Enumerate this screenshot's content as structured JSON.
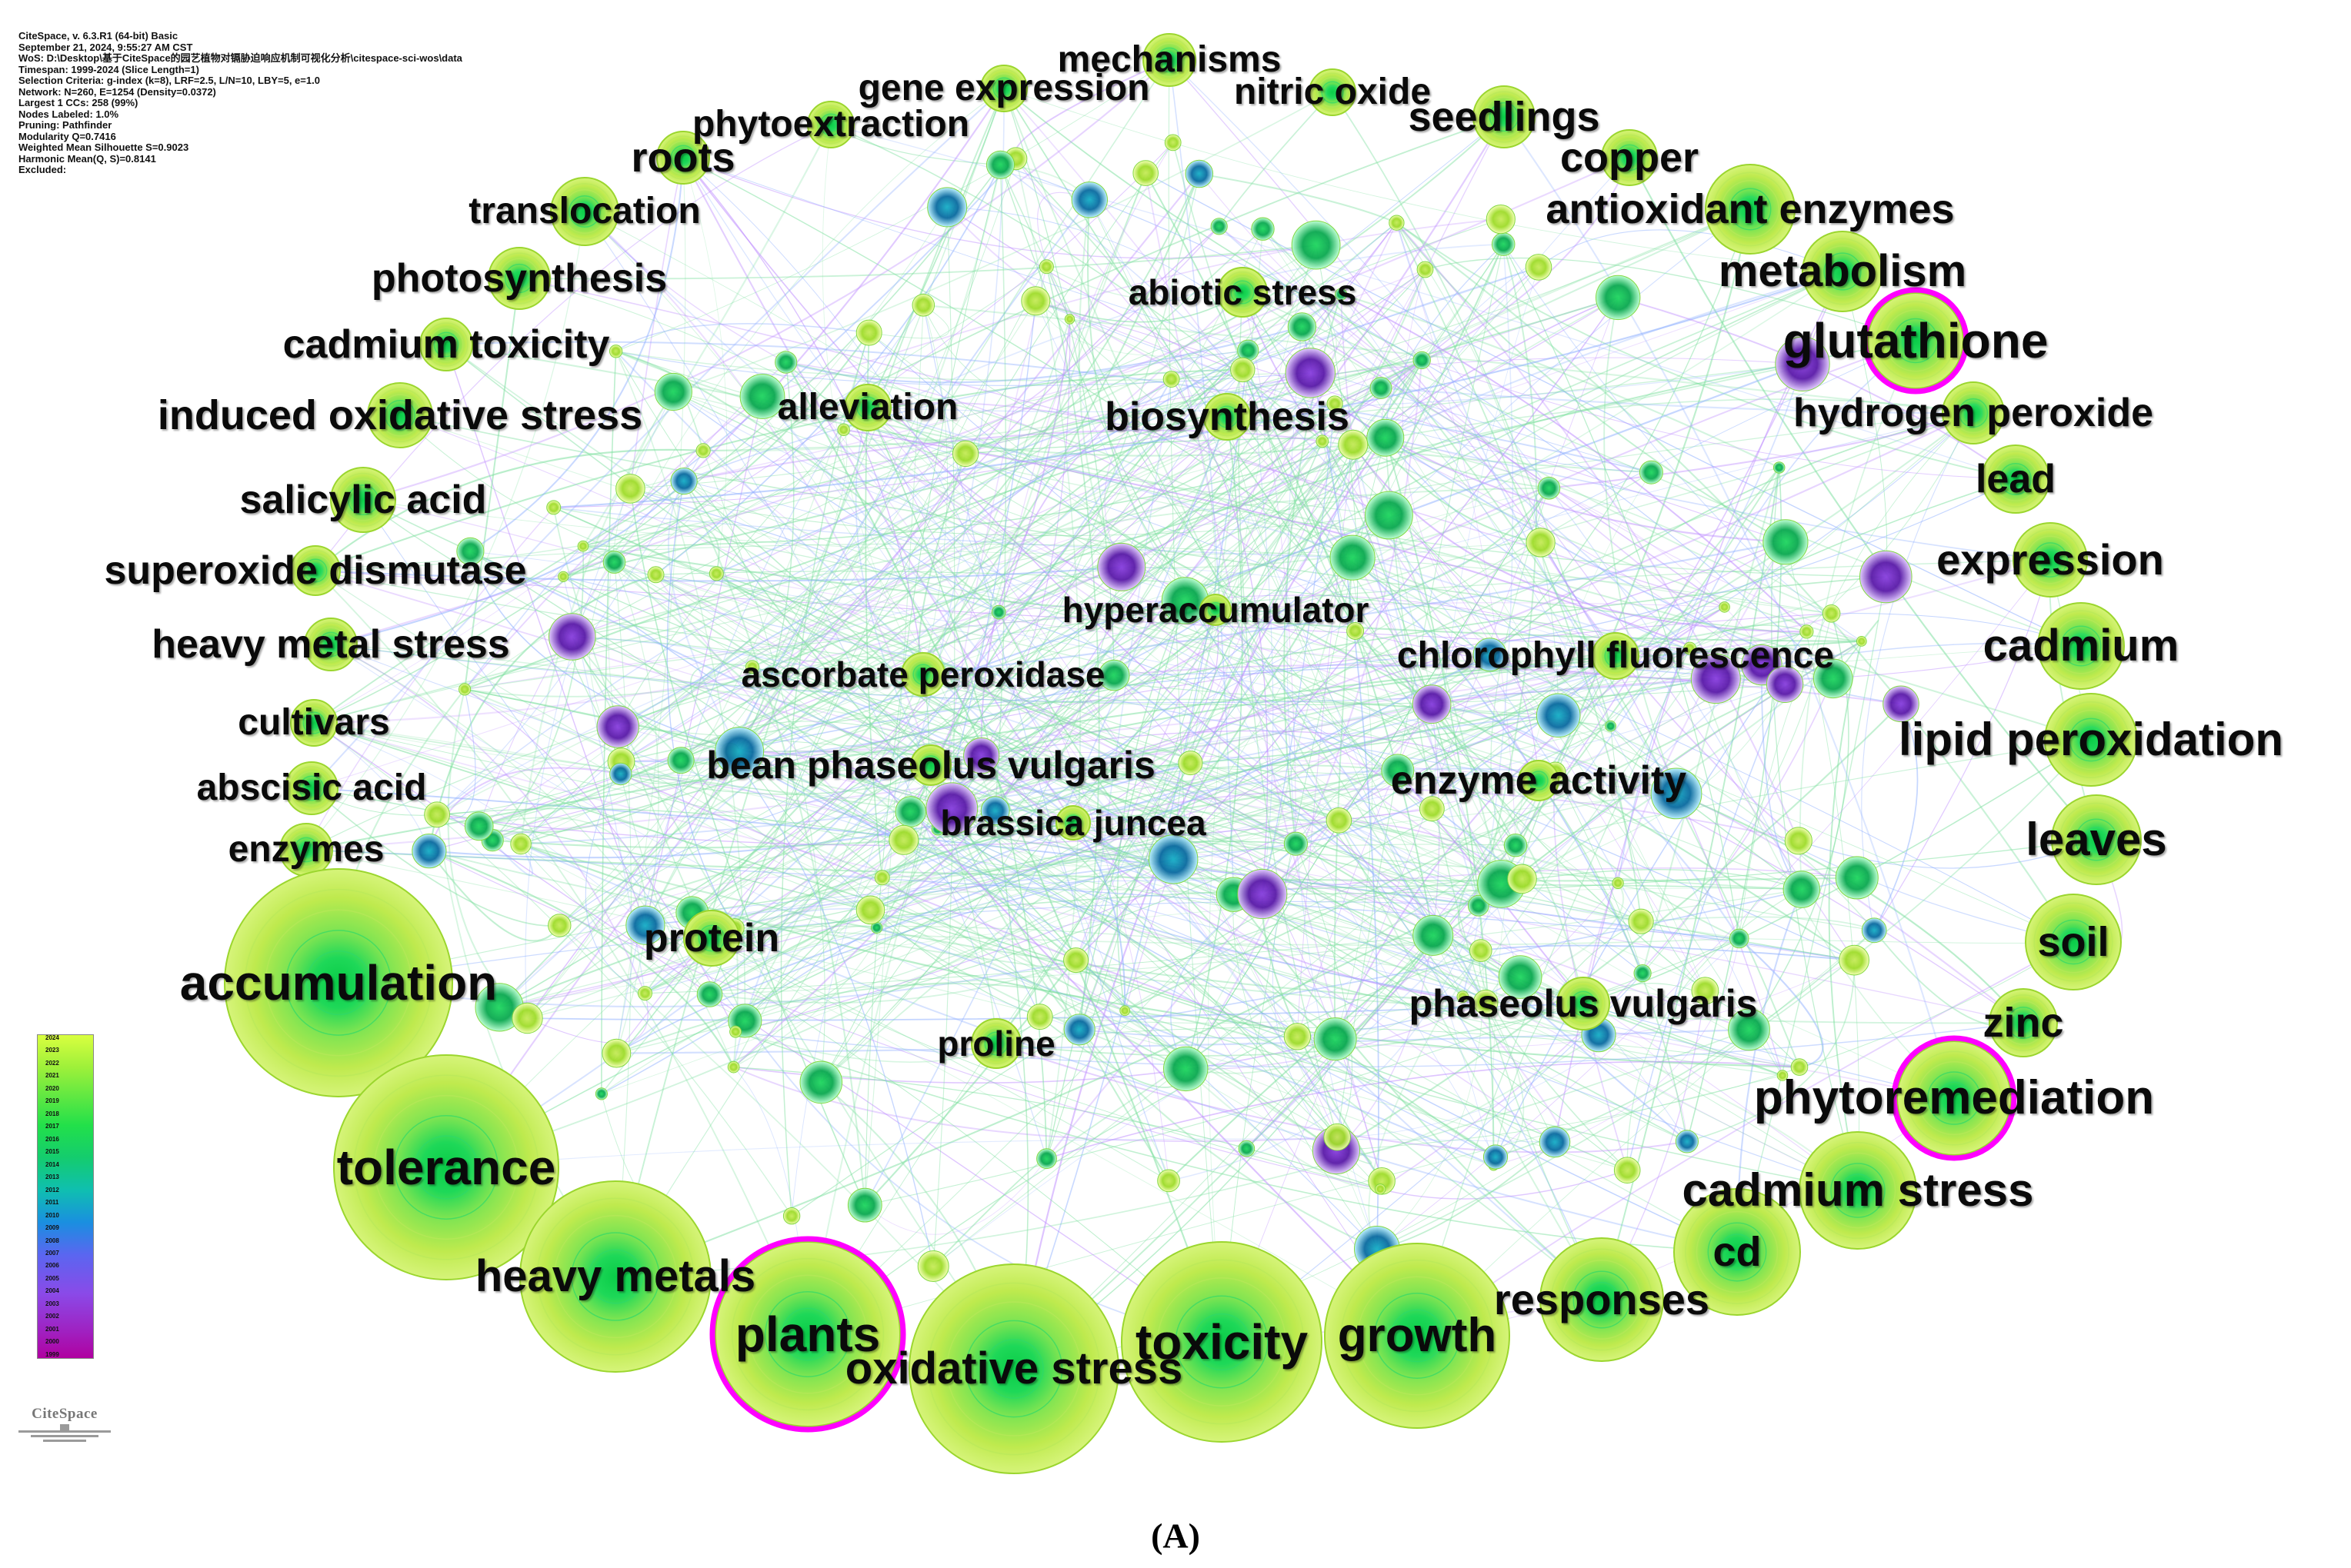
{
  "header_lines": [
    "CiteSpace, v. 6.3.R1 (64-bit) Basic",
    "September 21, 2024, 9:55:27 AM CST",
    "WoS: D:\\Desktop\\基于CiteSpace的园艺植物对镉胁迫响应机制可视化分析\\citespace-sci-wos\\data",
    "Timespan: 1999-2024 (Slice Length=1)",
    "Selection Criteria: g-index (k=8), LRF=2.5, L/N=10, LBY=5, e=1.0",
    "Network: N=260, E=1254 (Density=0.0372)",
    "Largest 1 CCs: 258 (99%)",
    "Nodes Labeled: 1.0%",
    "Pruning: Pathfinder",
    "Modularity Q=0.7416",
    "Weighted Mean Silhouette S=0.9023",
    "Harmonic Mean(Q, S)=0.8141",
    "Excluded:"
  ],
  "keywords": [
    {
      "label": "mechanisms"
    },
    {
      "label": "gene expression"
    },
    {
      "label": "nitric oxide"
    },
    {
      "label": "phytoextraction"
    },
    {
      "label": "seedlings"
    },
    {
      "label": "roots"
    },
    {
      "label": "copper"
    },
    {
      "label": "translocation"
    },
    {
      "label": "antioxidant enzymes"
    },
    {
      "label": "photosynthesis"
    },
    {
      "label": "metabolism"
    },
    {
      "label": "abiotic stress"
    },
    {
      "label": "cadmium toxicity"
    },
    {
      "label": "glutathione"
    },
    {
      "label": "induced oxidative stress"
    },
    {
      "label": "alleviation"
    },
    {
      "label": "biosynthesis"
    },
    {
      "label": "hydrogen peroxide"
    },
    {
      "label": "lead"
    },
    {
      "label": "salicylic acid"
    },
    {
      "label": "superoxide dismutase"
    },
    {
      "label": "expression"
    },
    {
      "label": "hyperaccumulator"
    },
    {
      "label": "heavy metal stress"
    },
    {
      "label": "cadmium"
    },
    {
      "label": "chlorophyll fluorescence"
    },
    {
      "label": "ascorbate peroxidase"
    },
    {
      "label": "cultivars"
    },
    {
      "label": "lipid peroxidation"
    },
    {
      "label": "bean phaseolus vulgaris"
    },
    {
      "label": "abscisic acid"
    },
    {
      "label": "enzyme activity"
    },
    {
      "label": "brassica juncea"
    },
    {
      "label": "enzymes"
    },
    {
      "label": "leaves"
    },
    {
      "label": "protein"
    },
    {
      "label": "soil"
    },
    {
      "label": "accumulation"
    },
    {
      "label": "phaseolus vulgaris"
    },
    {
      "label": "zinc"
    },
    {
      "label": "proline"
    },
    {
      "label": "phytoremediation"
    },
    {
      "label": "tolerance"
    },
    {
      "label": "cadmium stress"
    },
    {
      "label": "cd"
    },
    {
      "label": "heavy metals"
    },
    {
      "label": "responses"
    },
    {
      "label": "plants"
    },
    {
      "label": "growth"
    },
    {
      "label": "toxicity"
    },
    {
      "label": "oxidative stress"
    }
  ],
  "legend_years": [
    "2024",
    "2023",
    "2022",
    "2021",
    "2020",
    "2019",
    "2018",
    "2017",
    "2016",
    "2015",
    "2014",
    "2013",
    "2012",
    "2011",
    "2010",
    "2009",
    "2008",
    "2007",
    "2006",
    "2005",
    "2004",
    "2003",
    "2002",
    "2001",
    "2000",
    "1999"
  ],
  "brand": "CiteSpace",
  "caption": "(A)",
  "colors": {
    "recent_node": "#c8ec5a",
    "mid_node": "#20d860",
    "old_node": "#8a40e0",
    "highlight_ring": "#ff00ff",
    "edge_green": "#7fe0a0",
    "edge_blue": "#8fb0ff",
    "edge_violet": "#c090ff"
  }
}
